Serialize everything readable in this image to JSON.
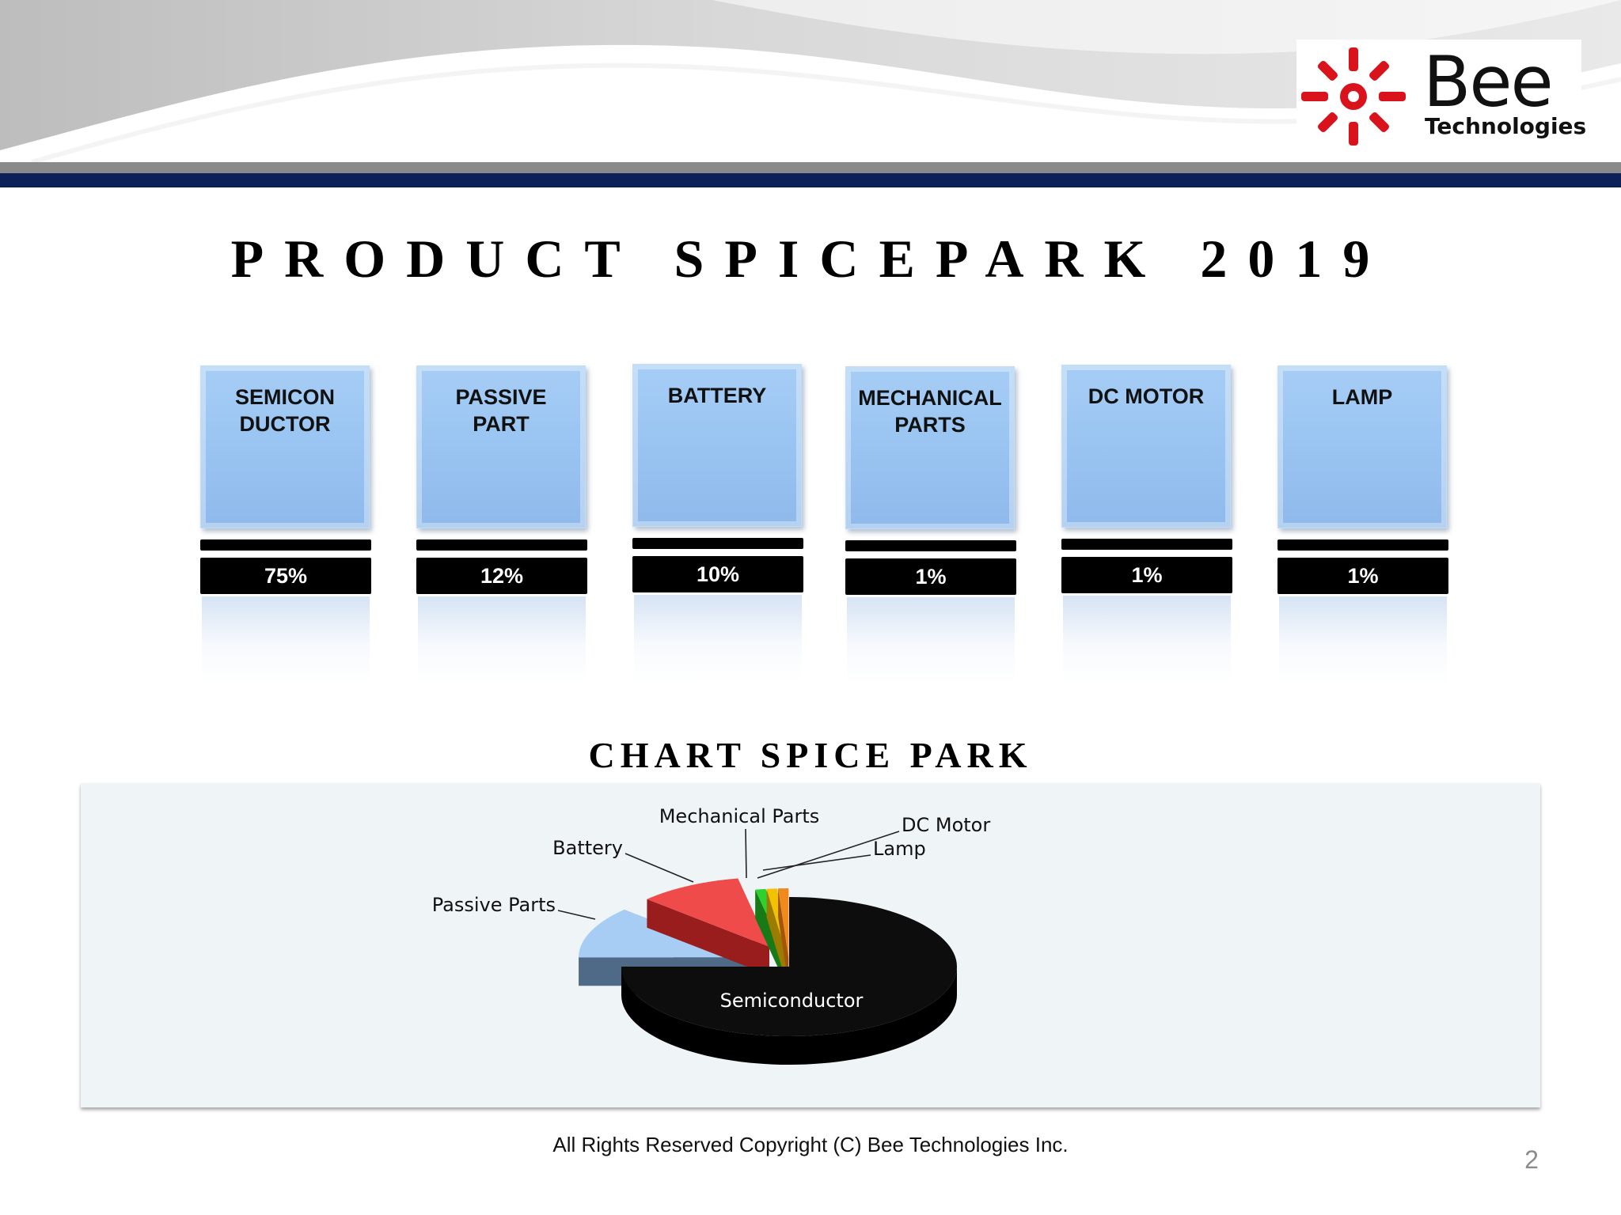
{
  "brand": {
    "name": "Bee",
    "subtitle": "Technologies"
  },
  "title": "PRODUCT SPICEPARK 2019",
  "categories": [
    {
      "label_lines": [
        "SEMICON",
        "DUCTOR"
      ],
      "percent": "75%"
    },
    {
      "label_lines": [
        "PASSIVE",
        "PART"
      ],
      "percent": "12%"
    },
    {
      "label_lines": [
        "BATTERY"
      ],
      "percent": "10%"
    },
    {
      "label_lines": [
        "MECHANICAL",
        "PARTS"
      ],
      "percent": "1%"
    },
    {
      "label_lines": [
        "DC MOTOR"
      ],
      "percent": "1%"
    },
    {
      "label_lines": [
        "LAMP"
      ],
      "percent": "1%"
    }
  ],
  "chart_title": "CHART SPICE PARK",
  "chart_data": {
    "type": "pie",
    "style": "3d exploded",
    "slices": [
      {
        "label": "Semiconductor",
        "value": 75,
        "color": "#0d0d0d",
        "side_color": "#000000"
      },
      {
        "label": "Passive Parts",
        "value": 12,
        "color": "#a7cdf5",
        "side_color": "#4f6a87"
      },
      {
        "label": "Battery",
        "value": 10,
        "color": "#ef4b4b",
        "side_color": "#9a1d1d"
      },
      {
        "label": "Mechanical Parts",
        "value": 1,
        "color": "#2fd12f",
        "side_color": "#177a17"
      },
      {
        "label": "DC Motor",
        "value": 1,
        "color": "#f2c200",
        "side_color": "#9b7c00"
      },
      {
        "label": "Lamp",
        "value": 1,
        "color": "#f08a1c",
        "side_color": "#a3560a"
      }
    ]
  },
  "footer": "All Rights Reserved Copyright (C) Bee Technologies Inc.",
  "page_number": "2",
  "colors": {
    "navy_band": "#0b2158",
    "gray_band": "#8a8a8a",
    "logo_red": "#d9121b"
  }
}
